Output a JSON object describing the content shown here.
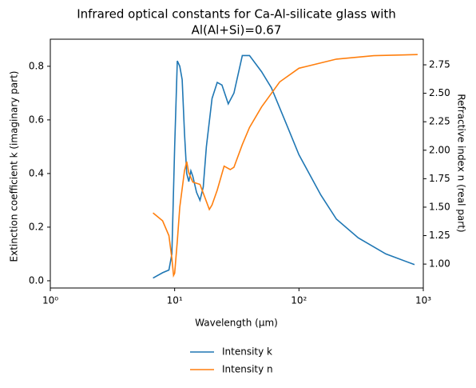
{
  "chart_data": {
    "type": "line",
    "title": [
      "Infrared optical constants for Ca-Al-silicate glass with",
      "Al(Al+Si)=0.67"
    ],
    "xlabel": "Wavelength (μm)",
    "ylabel": "Extinction coefficient k (imaginary part)",
    "y2label": "Refractive index n (real part)",
    "xscale": "log",
    "xlim": [
      1,
      1000
    ],
    "xticks": [
      {
        "value": 1,
        "label": "10⁰"
      },
      {
        "value": 10,
        "label": "10¹"
      },
      {
        "value": 100,
        "label": "10²"
      },
      {
        "value": 1000,
        "label": "10³"
      }
    ],
    "ylim": [
      -0.027,
      0.901
    ],
    "yticks": [
      {
        "value": 0,
        "label": "0.0"
      },
      0.2,
      0.4,
      0.6,
      0.8
    ],
    "y2lim": [
      0.79,
      2.975
    ],
    "y2ticks": [
      {
        "value": 1,
        "label": "1.00"
      },
      1.25,
      {
        "value": 1.5,
        "label": "1.50"
      },
      1.75,
      {
        "value": 2,
        "label": "2.00"
      },
      2.25,
      {
        "value": 2.5,
        "label": "2.50"
      },
      2.75
    ],
    "series": [
      {
        "name": "Intensity k",
        "color": "#1f77b4",
        "x": [
          6.7,
          8,
          9,
          9.5,
          10,
          10.5,
          11,
          11.5,
          12,
          12.5,
          13,
          13.5,
          14,
          15,
          16,
          17,
          18,
          20,
          22,
          24,
          27,
          30,
          35,
          40,
          50,
          60,
          80,
          100,
          150,
          200,
          300,
          500,
          850
        ],
        "values": [
          0.01,
          0.03,
          0.04,
          0.1,
          0.5,
          0.82,
          0.8,
          0.75,
          0.55,
          0.4,
          0.37,
          0.41,
          0.39,
          0.33,
          0.3,
          0.35,
          0.5,
          0.68,
          0.74,
          0.73,
          0.66,
          0.7,
          0.84,
          0.84,
          0.78,
          0.72,
          0.58,
          0.47,
          0.32,
          0.23,
          0.16,
          0.1,
          0.06
        ]
      },
      {
        "name": "Intensity n",
        "color": "#ff7f0e",
        "axis": "y2",
        "x": [
          6.7,
          8,
          9,
          9.5,
          9.8,
          10,
          10.5,
          11,
          12,
          12.5,
          13,
          14,
          16,
          18,
          19,
          20,
          22,
          25,
          28,
          30,
          35,
          40,
          50,
          70,
          100,
          200,
          400,
          900
        ],
        "values": [
          1.45,
          1.38,
          1.25,
          1.05,
          0.9,
          0.92,
          1.2,
          1.5,
          1.82,
          1.9,
          1.8,
          1.72,
          1.7,
          1.55,
          1.48,
          1.52,
          1.65,
          1.86,
          1.83,
          1.85,
          2.05,
          2.2,
          2.38,
          2.6,
          2.72,
          2.8,
          2.83,
          2.84
        ]
      }
    ]
  }
}
